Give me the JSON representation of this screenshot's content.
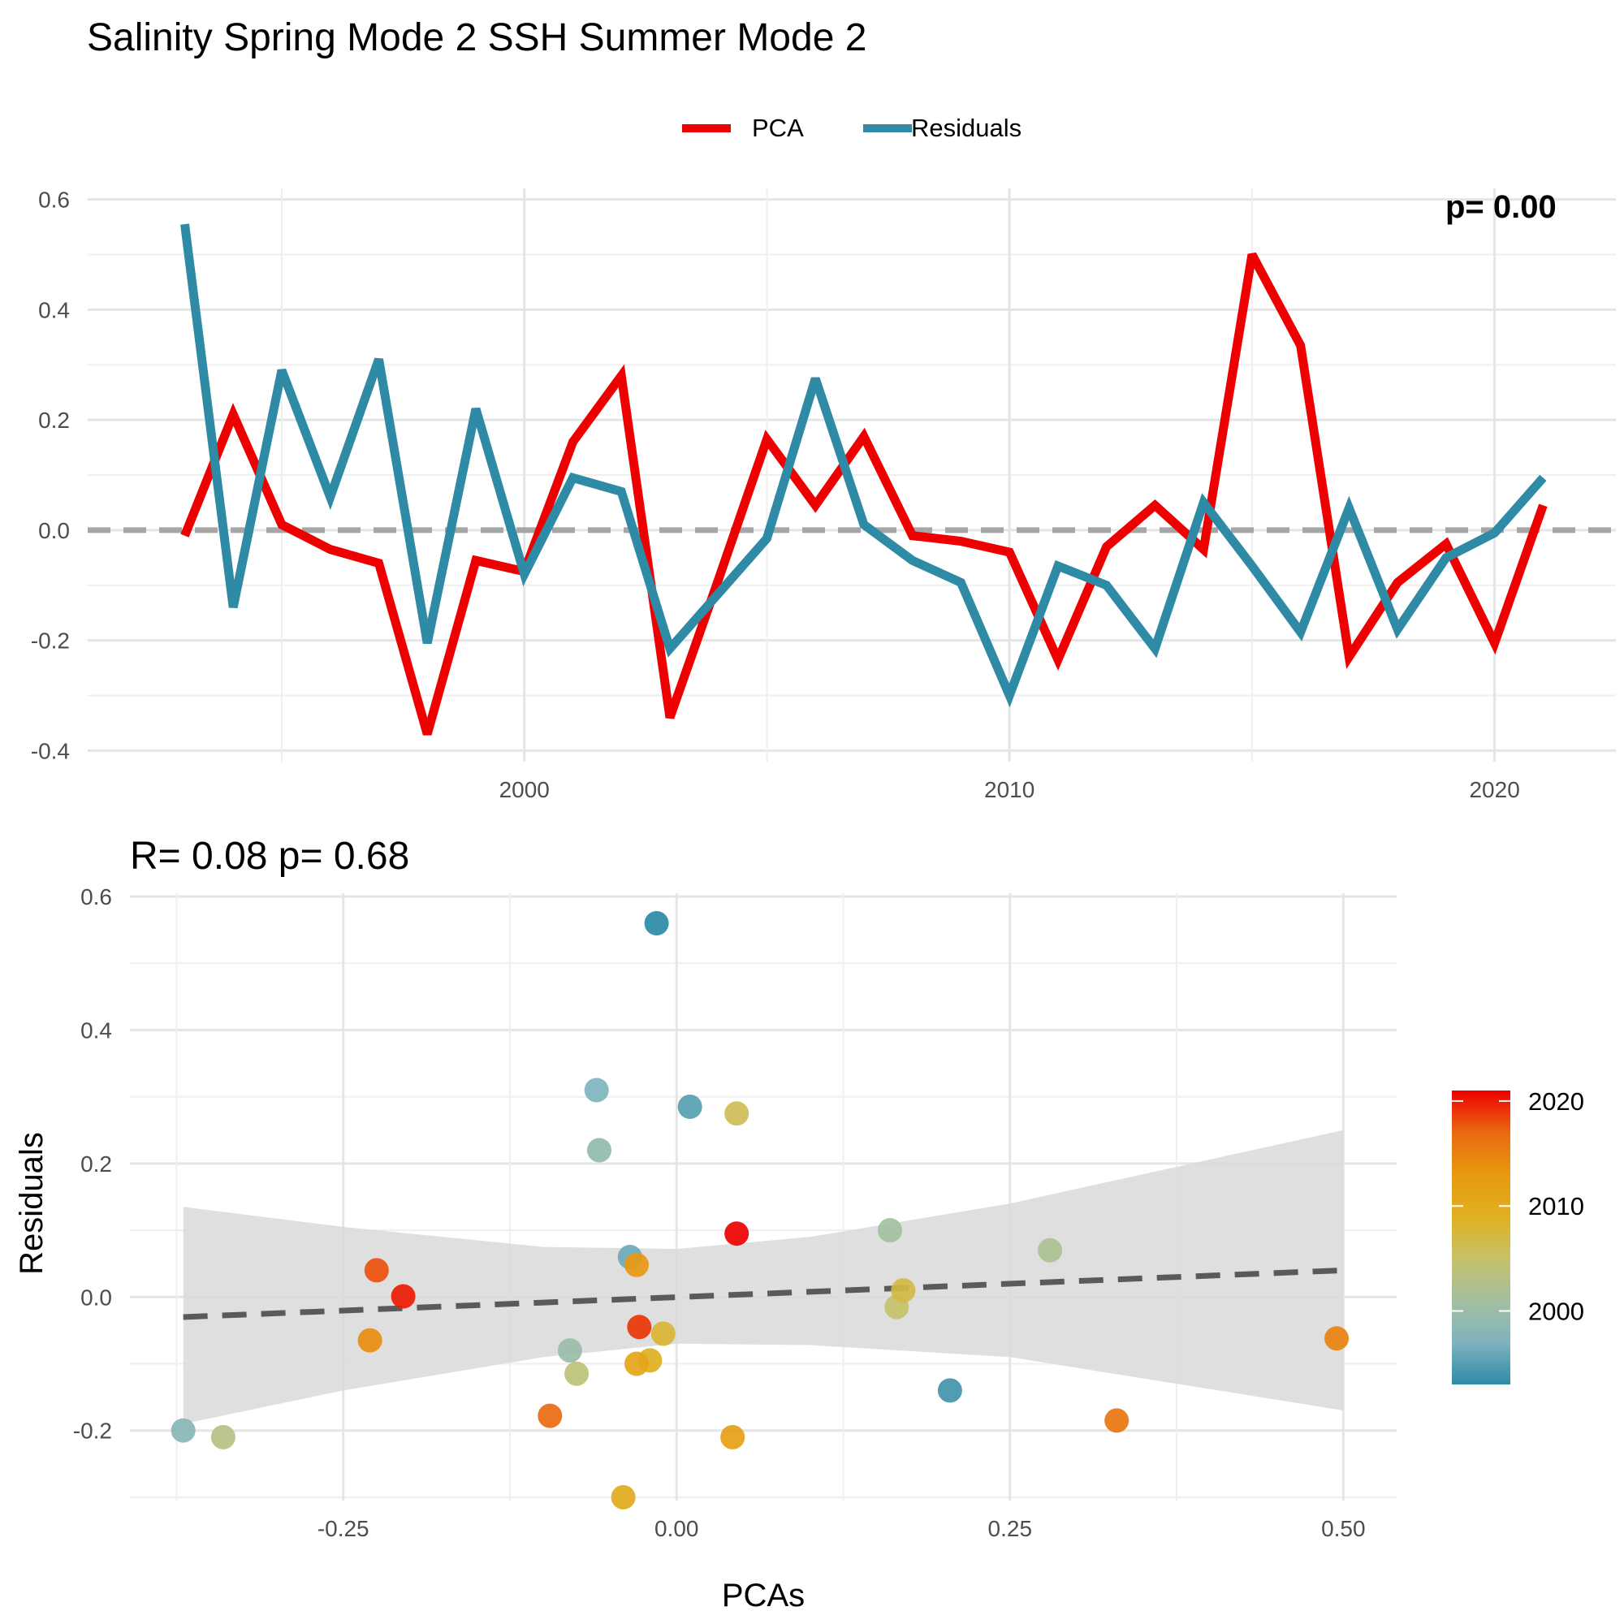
{
  "title": "Salinity Spring Mode 2 SSH Summer Mode 2",
  "chart_data": [
    {
      "type": "line",
      "title": "Salinity Spring Mode 2 SSH Summer Mode 2",
      "xlabel": "",
      "ylabel": "",
      "x": [
        1993,
        1994,
        1995,
        1996,
        1997,
        1998,
        1999,
        2000,
        2001,
        2002,
        2003,
        2004,
        2005,
        2006,
        2007,
        2008,
        2009,
        2010,
        2011,
        2012,
        2013,
        2014,
        2015,
        2016,
        2017,
        2018,
        2019,
        2020,
        2021
      ],
      "series": [
        {
          "name": "PCA",
          "color": "#ee0000",
          "values": [
            -0.01,
            0.21,
            0.01,
            -0.035,
            -0.06,
            -0.37,
            -0.055,
            -0.075,
            0.16,
            0.28,
            -0.34,
            -0.09,
            0.165,
            0.045,
            0.17,
            -0.01,
            -0.02,
            -0.04,
            -0.235,
            -0.03,
            0.045,
            -0.035,
            0.5,
            0.335,
            -0.23,
            -0.095,
            -0.025,
            -0.205,
            0.045
          ]
        },
        {
          "name": "Residuals",
          "color": "#2e8aa5",
          "values": [
            0.555,
            -0.14,
            0.29,
            0.06,
            0.31,
            -0.205,
            0.22,
            -0.08,
            0.095,
            0.07,
            -0.215,
            -0.115,
            -0.015,
            0.275,
            0.01,
            -0.055,
            -0.095,
            -0.3,
            -0.065,
            -0.1,
            -0.215,
            0.05,
            -0.065,
            -0.185,
            0.04,
            -0.18,
            -0.05,
            -0.005,
            0.095
          ]
        }
      ],
      "xlim": [
        1991,
        2022.5
      ],
      "ylim": [
        -0.42,
        0.62
      ],
      "x_ticks": [
        2000,
        2010,
        2020
      ],
      "y_ticks": [
        -0.4,
        -0.2,
        0.0,
        0.2,
        0.4,
        0.6
      ],
      "x_tick_labels": [
        "2000",
        "2010",
        "2020"
      ],
      "y_tick_labels": [
        "-0.4",
        "-0.2",
        "0.0",
        "0.2",
        "0.4",
        "0.6"
      ],
      "reference_line": 0.0,
      "legend": {
        "position": "top",
        "entries": [
          "PCA",
          "Residuals"
        ]
      },
      "clipped_annotation": "p= 0.00",
      "grid": true
    },
    {
      "type": "scatter",
      "title": "R= 0.08  p= 0.68",
      "xlabel": "PCAs",
      "ylabel": "Residuals",
      "xlim": [
        -0.41,
        0.54
      ],
      "ylim": [
        -0.305,
        0.605
      ],
      "x_ticks": [
        -0.25,
        0.0,
        0.25,
        0.5
      ],
      "y_ticks": [
        -0.2,
        0.0,
        0.2,
        0.4,
        0.6
      ],
      "x_tick_labels": [
        "-0.25",
        "0.00",
        "0.25",
        "0.50"
      ],
      "y_tick_labels": [
        "-0.2",
        "0.0",
        "0.2",
        "0.4",
        "0.6"
      ],
      "points": [
        {
          "x": -0.015,
          "y": 0.56,
          "year": 1993
        },
        {
          "x": 0.205,
          "y": -0.14,
          "year": 1994
        },
        {
          "x": 0.01,
          "y": 0.285,
          "year": 1995
        },
        {
          "x": -0.035,
          "y": 0.06,
          "year": 1996
        },
        {
          "x": -0.06,
          "y": 0.31,
          "year": 1997
        },
        {
          "x": -0.37,
          "y": -0.2,
          "year": 1998
        },
        {
          "x": -0.058,
          "y": 0.22,
          "year": 1999
        },
        {
          "x": -0.08,
          "y": -0.08,
          "year": 2000
        },
        {
          "x": 0.16,
          "y": 0.1,
          "year": 2001
        },
        {
          "x": 0.28,
          "y": 0.07,
          "year": 2002
        },
        {
          "x": -0.34,
          "y": -0.21,
          "year": 2003
        },
        {
          "x": -0.075,
          "y": -0.115,
          "year": 2004
        },
        {
          "x": 0.165,
          "y": -0.015,
          "year": 2005
        },
        {
          "x": 0.045,
          "y": 0.275,
          "year": 2006
        },
        {
          "x": 0.17,
          "y": 0.01,
          "year": 2007
        },
        {
          "x": -0.01,
          "y": -0.055,
          "year": 2008
        },
        {
          "x": -0.02,
          "y": -0.095,
          "year": 2009
        },
        {
          "x": -0.04,
          "y": -0.3,
          "year": 2010
        },
        {
          "x": -0.03,
          "y": -0.1,
          "year": 2011
        },
        {
          "x": 0.042,
          "y": -0.21,
          "year": 2012
        },
        {
          "x": -0.03,
          "y": 0.048,
          "year": 2013
        },
        {
          "x": -0.23,
          "y": -0.065,
          "year": 2014
        },
        {
          "x": 0.495,
          "y": -0.062,
          "year": 2015
        },
        {
          "x": 0.33,
          "y": -0.185,
          "year": 2016
        },
        {
          "x": -0.095,
          "y": -0.178,
          "year": 2017
        },
        {
          "x": -0.225,
          "y": 0.04,
          "year": 2018
        },
        {
          "x": -0.028,
          "y": -0.045,
          "year": 2019
        },
        {
          "x": -0.205,
          "y": 0.001,
          "year": 2020
        },
        {
          "x": 0.045,
          "y": 0.095,
          "year": 2021
        }
      ],
      "fit_line": {
        "x": [
          -0.37,
          0.5
        ],
        "y": [
          -0.03,
          0.04
        ]
      },
      "confidence_band": {
        "x": [
          -0.37,
          -0.25,
          -0.1,
          0.0,
          0.1,
          0.25,
          0.5
        ],
        "upper": [
          0.135,
          0.105,
          0.075,
          0.072,
          0.09,
          0.14,
          0.25
        ],
        "lower": [
          -0.19,
          -0.14,
          -0.09,
          -0.07,
          -0.072,
          -0.09,
          -0.17
        ]
      },
      "colorbar": {
        "position": "right",
        "tick_labels": [
          "2020",
          "2010",
          "2000"
        ],
        "tick_values": [
          2020,
          2010,
          2000
        ],
        "range": [
          1993,
          2021
        ],
        "colors": [
          "#2e8aa5",
          "#7fb3be",
          "#a3c0a0",
          "#c6c16a",
          "#e0b020",
          "#e89910",
          "#ea6a10",
          "#ee0000"
        ]
      },
      "grid": true
    }
  ]
}
